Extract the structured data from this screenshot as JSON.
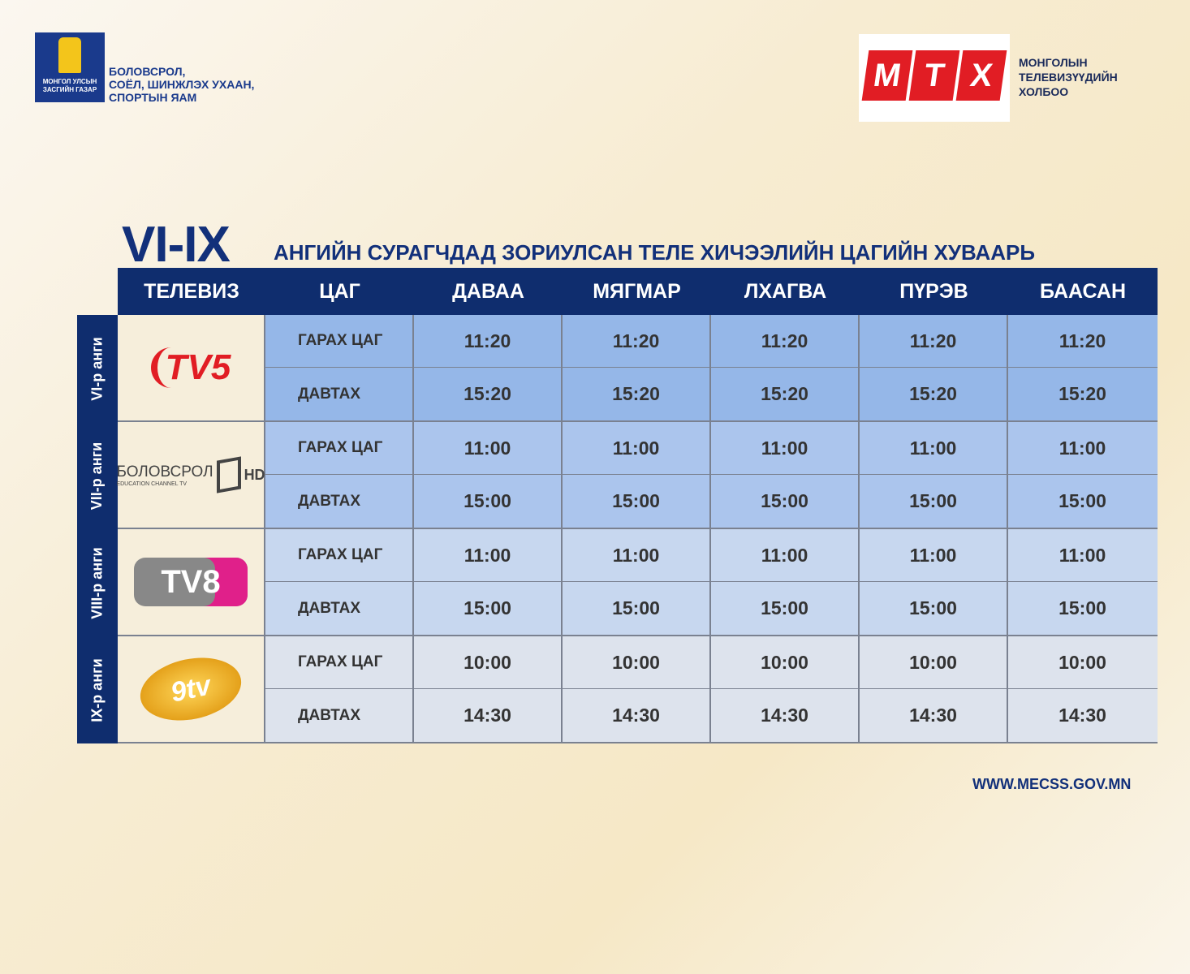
{
  "branding": {
    "gov_logo_text": "МОНГОЛ УЛСЫН ЗАСГИЙН ГАЗАР",
    "ministry": "БОЛОВСРОЛ,\nСОЁЛ, ШИНЖЛЭХ УХААН,\nСПОРТЫН ЯАМ",
    "mtx_letters": [
      "М",
      "Т",
      "Х"
    ],
    "mtx_name": "МОНГОЛЫН\nТЕЛЕВИЗҮҮДИЙН\nХОЛБОО"
  },
  "title": {
    "grades": "VI-IX",
    "subtitle": "АНГИЙН СУРАГЧДАД ЗОРИУЛСАН ТЕЛЕ ХИЧЭЭЛИЙН ЦАГИЙН ХУВААРЬ"
  },
  "header": [
    "ТЕЛЕВИЗ",
    "ЦАГ",
    "ДАВАА",
    "МЯГМАР",
    "ЛХАГВА",
    "ПҮРЭВ",
    "БААСАН"
  ],
  "colors": {
    "navy": "#0f2d6e",
    "tv5_red": "#e11d24"
  },
  "rows": [
    {
      "grade": "VI-р анги",
      "channel": "TV5",
      "bg": "#95b7e8",
      "times": [
        {
          "label": "ГАРАХ ЦАГ",
          "values": [
            "11:20",
            "11:20",
            "11:20",
            "11:20",
            "11:20"
          ]
        },
        {
          "label": "ДАВТАХ",
          "values": [
            "15:20",
            "15:20",
            "15:20",
            "15:20",
            "15:20"
          ]
        }
      ]
    },
    {
      "grade": "VII-р анги",
      "channel": "БОЛОВСРОЛ",
      "channel_sub": "EDUCATION CHANNEL TV",
      "channel_hd": "HD",
      "bg": "#abc5ed",
      "times": [
        {
          "label": "ГАРАХ ЦАГ",
          "values": [
            "11:00",
            "11:00",
            "11:00",
            "11:00",
            "11:00"
          ]
        },
        {
          "label": "ДАВТАХ",
          "values": [
            "15:00",
            "15:00",
            "15:00",
            "15:00",
            "15:00"
          ]
        }
      ]
    },
    {
      "grade": "VIII-р анги",
      "channel": "TV8",
      "bg": "#c7d7ef",
      "times": [
        {
          "label": "ГАРАХ ЦАГ",
          "values": [
            "11:00",
            "11:00",
            "11:00",
            "11:00",
            "11:00"
          ]
        },
        {
          "label": "ДАВТАХ",
          "values": [
            "15:00",
            "15:00",
            "15:00",
            "15:00",
            "15:00"
          ]
        }
      ]
    },
    {
      "grade": "IX-р анги",
      "channel": "9tv",
      "bg": "#dde3ed",
      "times": [
        {
          "label": "ГАРАХ ЦАГ",
          "values": [
            "10:00",
            "10:00",
            "10:00",
            "10:00",
            "10:00"
          ]
        },
        {
          "label": "ДАВТАХ",
          "values": [
            "14:30",
            "14:30",
            "14:30",
            "14:30",
            "14:30"
          ]
        }
      ]
    }
  ],
  "footer": {
    "url": "WWW.MECSS.GOV.MN"
  }
}
